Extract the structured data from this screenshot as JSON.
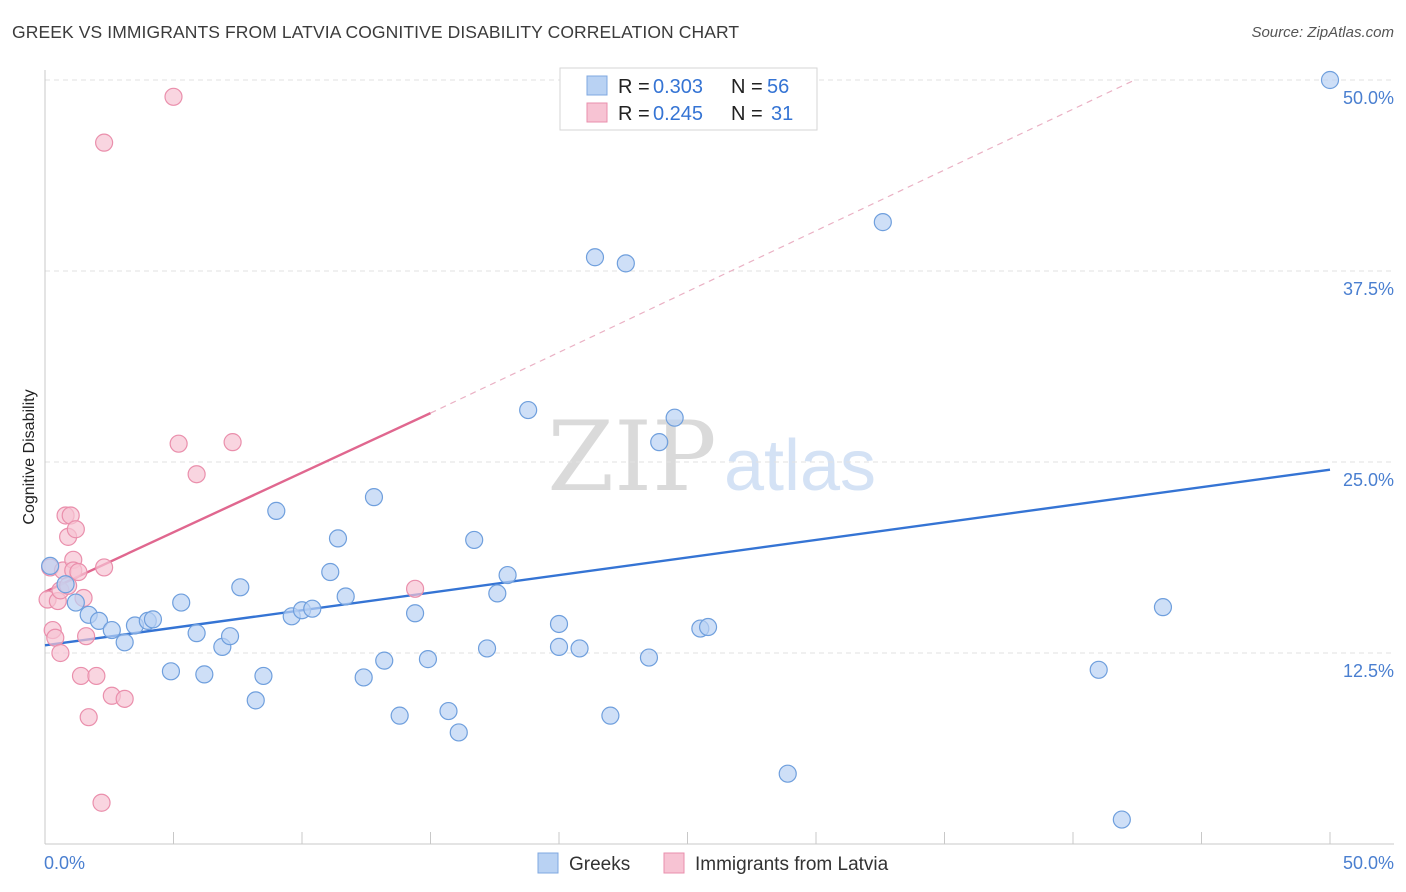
{
  "title": "GREEK VS IMMIGRANTS FROM LATVIA COGNITIVE DISABILITY CORRELATION CHART",
  "source": "Source: ZipAtlas.com",
  "watermark": {
    "left": "ZIP",
    "right": "atlas"
  },
  "colors": {
    "blue": "#4a7fd0",
    "blue_fill": "#b9d2f3",
    "blue_line": "#3574d4",
    "pink_fill": "#f7c3d3",
    "pink_stroke": "#ea8fac",
    "pink_line": "#e0678f",
    "grid": "#e2e2e2"
  },
  "chart_data": {
    "type": "scatter",
    "title": "GREEK VS IMMIGRANTS FROM LATVIA COGNITIVE DISABILITY CORRELATION CHART",
    "xlabel": "",
    "ylabel": "Cognitive Disability",
    "xlim": [
      0,
      50
    ],
    "ylim": [
      0,
      50
    ],
    "x_tick_labels": {
      "min": "0.0%",
      "max": "50.0%"
    },
    "y_ticks": [
      12.5,
      25.0,
      37.5,
      50.0
    ],
    "y_tick_labels": [
      "12.5%",
      "25.0%",
      "37.5%",
      "50.0%"
    ],
    "grid": true,
    "legend_position": "top-center",
    "legend": [
      {
        "r_label": "R = ",
        "r_value": "0.303",
        "n_label": "N = ",
        "n_value": "56"
      },
      {
        "r_label": "R = ",
        "r_value": "0.245",
        "n_label": "N = ",
        "n_value": "31"
      }
    ],
    "series": [
      {
        "name": "Greeks",
        "color": "blue",
        "trend": {
          "x": [
            0,
            50
          ],
          "y": [
            13.0,
            24.5
          ],
          "dashed_ext": false
        },
        "points": [
          [
            0.2,
            18.2
          ],
          [
            0.8,
            17.0
          ],
          [
            1.2,
            15.8
          ],
          [
            1.7,
            15.0
          ],
          [
            2.1,
            14.6
          ],
          [
            2.6,
            14.0
          ],
          [
            3.1,
            13.2
          ],
          [
            3.5,
            14.3
          ],
          [
            4.0,
            14.6
          ],
          [
            4.2,
            14.7
          ],
          [
            4.9,
            11.3
          ],
          [
            5.3,
            15.8
          ],
          [
            5.9,
            13.8
          ],
          [
            6.2,
            11.1
          ],
          [
            6.9,
            12.9
          ],
          [
            7.2,
            13.6
          ],
          [
            7.6,
            16.8
          ],
          [
            8.2,
            9.4
          ],
          [
            8.5,
            11.0
          ],
          [
            9.0,
            21.8
          ],
          [
            9.6,
            14.9
          ],
          [
            10.0,
            15.3
          ],
          [
            10.4,
            15.4
          ],
          [
            11.1,
            17.8
          ],
          [
            11.4,
            20.0
          ],
          [
            11.7,
            16.2
          ],
          [
            12.4,
            10.9
          ],
          [
            12.8,
            22.7
          ],
          [
            13.2,
            12.0
          ],
          [
            13.8,
            8.4
          ],
          [
            14.4,
            15.1
          ],
          [
            14.9,
            12.1
          ],
          [
            15.7,
            8.7
          ],
          [
            16.1,
            7.3
          ],
          [
            16.7,
            19.9
          ],
          [
            17.2,
            12.8
          ],
          [
            17.6,
            16.4
          ],
          [
            18.0,
            17.6
          ],
          [
            18.8,
            28.4
          ],
          [
            20.0,
            14.4
          ],
          [
            20.0,
            12.9
          ],
          [
            20.8,
            12.8
          ],
          [
            21.4,
            38.4
          ],
          [
            22.0,
            8.4
          ],
          [
            22.6,
            38.0
          ],
          [
            23.5,
            12.2
          ],
          [
            23.9,
            26.3
          ],
          [
            24.5,
            27.9
          ],
          [
            25.5,
            14.1
          ],
          [
            25.8,
            14.2
          ],
          [
            28.9,
            4.6
          ],
          [
            32.6,
            40.7
          ],
          [
            41.0,
            11.4
          ],
          [
            41.9,
            1.6
          ],
          [
            43.5,
            15.5
          ],
          [
            50.0,
            50.0
          ]
        ]
      },
      {
        "name": "Immigrants from Latvia",
        "color": "pink",
        "trend": {
          "x": [
            0,
            15
          ],
          "y": [
            16.5,
            28.2
          ],
          "dashed_ext": true,
          "dashed_to": [
            42.4,
            50.0
          ]
        },
        "points": [
          [
            0.1,
            16.0
          ],
          [
            0.2,
            18.1
          ],
          [
            0.3,
            14.0
          ],
          [
            0.4,
            13.5
          ],
          [
            0.5,
            15.9
          ],
          [
            0.6,
            12.5
          ],
          [
            0.6,
            16.6
          ],
          [
            0.7,
            17.9
          ],
          [
            0.8,
            21.5
          ],
          [
            0.9,
            20.1
          ],
          [
            1.0,
            21.5
          ],
          [
            1.1,
            18.6
          ],
          [
            1.1,
            17.9
          ],
          [
            1.2,
            20.6
          ],
          [
            1.4,
            11.0
          ],
          [
            1.5,
            16.1
          ],
          [
            1.6,
            13.6
          ],
          [
            1.7,
            8.3
          ],
          [
            2.0,
            11.0
          ],
          [
            2.2,
            2.7
          ],
          [
            2.3,
            45.9
          ],
          [
            2.3,
            18.1
          ],
          [
            2.6,
            9.7
          ],
          [
            3.1,
            9.5
          ],
          [
            5.0,
            48.9
          ],
          [
            5.2,
            26.2
          ],
          [
            5.9,
            24.2
          ],
          [
            7.3,
            26.3
          ],
          [
            14.4,
            16.7
          ],
          [
            1.3,
            17.8
          ],
          [
            0.9,
            16.9
          ]
        ]
      }
    ]
  }
}
